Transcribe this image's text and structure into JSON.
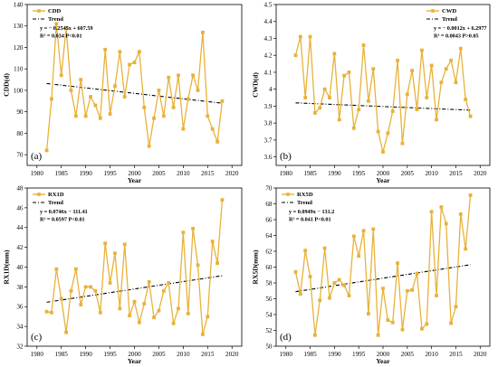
{
  "style": {
    "series_color": "#E8B23A",
    "trend_color": "#000000"
  },
  "chart_data": [
    {
      "type": "line",
      "panel_label": "(a)",
      "xlabel": "Year",
      "ylabel": "CDD(d)",
      "xlim": [
        1978,
        2022
      ],
      "ylim": [
        65,
        140
      ],
      "xticks": [
        1980,
        1985,
        1990,
        1995,
        2000,
        2005,
        2010,
        2015,
        2020
      ],
      "yticks": [
        70,
        80,
        90,
        100,
        110,
        120,
        130,
        140
      ],
      "legend": {
        "series": "CDD",
        "trend": "Trend"
      },
      "equation": "y = − 0.2545x + 607.59",
      "stats": "R² = 0.034   P<0.01",
      "trend_fn": {
        "slope": -0.2545,
        "intercept": 607.59
      },
      "trend_xrange": [
        1982,
        2018
      ],
      "x": [
        1982,
        1983,
        1984,
        1985,
        1986,
        1987,
        1988,
        1989,
        1990,
        1991,
        1992,
        1993,
        1994,
        1995,
        1996,
        1997,
        1998,
        1999,
        2000,
        2001,
        2002,
        2003,
        2004,
        2005,
        2006,
        2007,
        2008,
        2009,
        2010,
        2011,
        2012,
        2013,
        2014,
        2015,
        2016,
        2017,
        2018
      ],
      "values": [
        72,
        96,
        131,
        107,
        129,
        100,
        88,
        105,
        88,
        97,
        93,
        87,
        119,
        89,
        102,
        118,
        97,
        112,
        113,
        118,
        92,
        74,
        87,
        100,
        88,
        106,
        92,
        107,
        82,
        96,
        107,
        100,
        127,
        88,
        82,
        76,
        95
      ]
    },
    {
      "type": "line",
      "panel_label": "(b)",
      "xlabel": "Year",
      "ylabel": "CWD(d)",
      "xlim": [
        1978,
        2022
      ],
      "ylim": [
        3.55,
        4.5
      ],
      "xticks": [
        1980,
        1985,
        1990,
        1995,
        2000,
        2005,
        2010,
        2015,
        2020
      ],
      "yticks": [
        3.6,
        3.7,
        3.8,
        3.9,
        4.0,
        4.1,
        4.2,
        4.3,
        4.4,
        4.5
      ],
      "legend": {
        "series": "CWD",
        "trend": "Trend"
      },
      "equation": "y = − 0.0012x + 6.2977",
      "stats": "R² = 0.0043   P>0.05",
      "trend_fn": {
        "slope": -0.0012,
        "intercept": 6.2977
      },
      "trend_xrange": [
        1982,
        2018
      ],
      "x": [
        1982,
        1983,
        1984,
        1985,
        1986,
        1987,
        1988,
        1989,
        1990,
        1991,
        1992,
        1993,
        1994,
        1995,
        1996,
        1997,
        1998,
        1999,
        2000,
        2001,
        2002,
        2003,
        2004,
        2005,
        2006,
        2007,
        2008,
        2009,
        2010,
        2011,
        2012,
        2013,
        2014,
        2015,
        2016,
        2017,
        2018
      ],
      "values": [
        4.2,
        4.31,
        3.95,
        4.31,
        3.86,
        3.89,
        4.0,
        3.95,
        4.21,
        3.82,
        4.08,
        4.1,
        3.77,
        3.88,
        4.26,
        3.93,
        4.12,
        3.75,
        3.63,
        3.74,
        3.87,
        4.17,
        3.68,
        3.97,
        4.11,
        3.88,
        4.23,
        3.95,
        4.14,
        3.82,
        4.04,
        4.12,
        4.17,
        4.04,
        4.24,
        3.94,
        3.84
      ]
    },
    {
      "type": "line",
      "panel_label": "(c)",
      "xlabel": "Year",
      "ylabel": "RX1D(mm)",
      "xlim": [
        1978,
        2022
      ],
      "ylim": [
        32,
        48
      ],
      "xticks": [
        1980,
        1985,
        1990,
        1995,
        2000,
        2005,
        2010,
        2015,
        2020
      ],
      "yticks": [
        32,
        34,
        36,
        38,
        40,
        42,
        44,
        46,
        48
      ],
      "legend": {
        "series": "RX1D",
        "trend": "Trend"
      },
      "equation": "y = 0.0746x − 111.41",
      "stats": "R² = 0.0597   P<0.01",
      "trend_fn": {
        "slope": 0.0746,
        "intercept": -111.41
      },
      "trend_xrange": [
        1982,
        2018
      ],
      "x": [
        1982,
        1983,
        1984,
        1985,
        1986,
        1987,
        1988,
        1989,
        1990,
        1991,
        1992,
        1993,
        1994,
        1995,
        1996,
        1997,
        1998,
        1999,
        2000,
        2001,
        2002,
        2003,
        2004,
        2005,
        2006,
        2007,
        2008,
        2009,
        2010,
        2011,
        2012,
        2013,
        2014,
        2015,
        2016,
        2017,
        2018
      ],
      "values": [
        35.5,
        35.4,
        39.8,
        36.8,
        33.4,
        37.6,
        39.8,
        36.2,
        38.0,
        38.0,
        37.6,
        35.4,
        42.4,
        38.4,
        41.4,
        35.8,
        42.3,
        35.1,
        36.5,
        34.4,
        36.3,
        38.5,
        34.9,
        35.6,
        37.6,
        38.4,
        34.3,
        35.8,
        43.5,
        35.3,
        43.9,
        40.2,
        33.2,
        35.0,
        42.6,
        40.4,
        46.8
      ]
    },
    {
      "type": "line",
      "panel_label": "(d)",
      "xlabel": "Year",
      "ylabel": "RX5D(mm)",
      "xlim": [
        1978,
        2022
      ],
      "ylim": [
        50,
        70
      ],
      "xticks": [
        1980,
        1985,
        1990,
        1995,
        2000,
        2005,
        2010,
        2015,
        2020
      ],
      "yticks": [
        50,
        52,
        54,
        56,
        58,
        60,
        62,
        64,
        66,
        68,
        70
      ],
      "legend": {
        "series": "RX5D",
        "trend": "Trend"
      },
      "equation": "y = 0.0949x − 131.2",
      "stats": "R² = 0.041   P<0.01",
      "trend_fn": {
        "slope": 0.0949,
        "intercept": -131.2
      },
      "trend_xrange": [
        1982,
        2018
      ],
      "x": [
        1982,
        1983,
        1984,
        1985,
        1986,
        1987,
        1988,
        1989,
        1990,
        1991,
        1992,
        1993,
        1994,
        1995,
        1996,
        1997,
        1998,
        1999,
        2000,
        2001,
        2002,
        2003,
        2004,
        2005,
        2006,
        2007,
        2008,
        2009,
        2010,
        2011,
        2012,
        2013,
        2014,
        2015,
        2016,
        2017,
        2018
      ],
      "values": [
        59.4,
        56.6,
        62.1,
        58.8,
        51.4,
        55.8,
        62.4,
        56.1,
        58.0,
        58.4,
        57.7,
        56.4,
        63.9,
        61.4,
        64.6,
        54.1,
        64.8,
        51.4,
        57.3,
        53.3,
        53.0,
        60.5,
        52.1,
        57.0,
        57.1,
        59.2,
        52.2,
        52.8,
        67.0,
        56.4,
        67.6,
        65.5,
        52.9,
        55.0,
        66.7,
        62.3,
        69.1
      ]
    }
  ]
}
